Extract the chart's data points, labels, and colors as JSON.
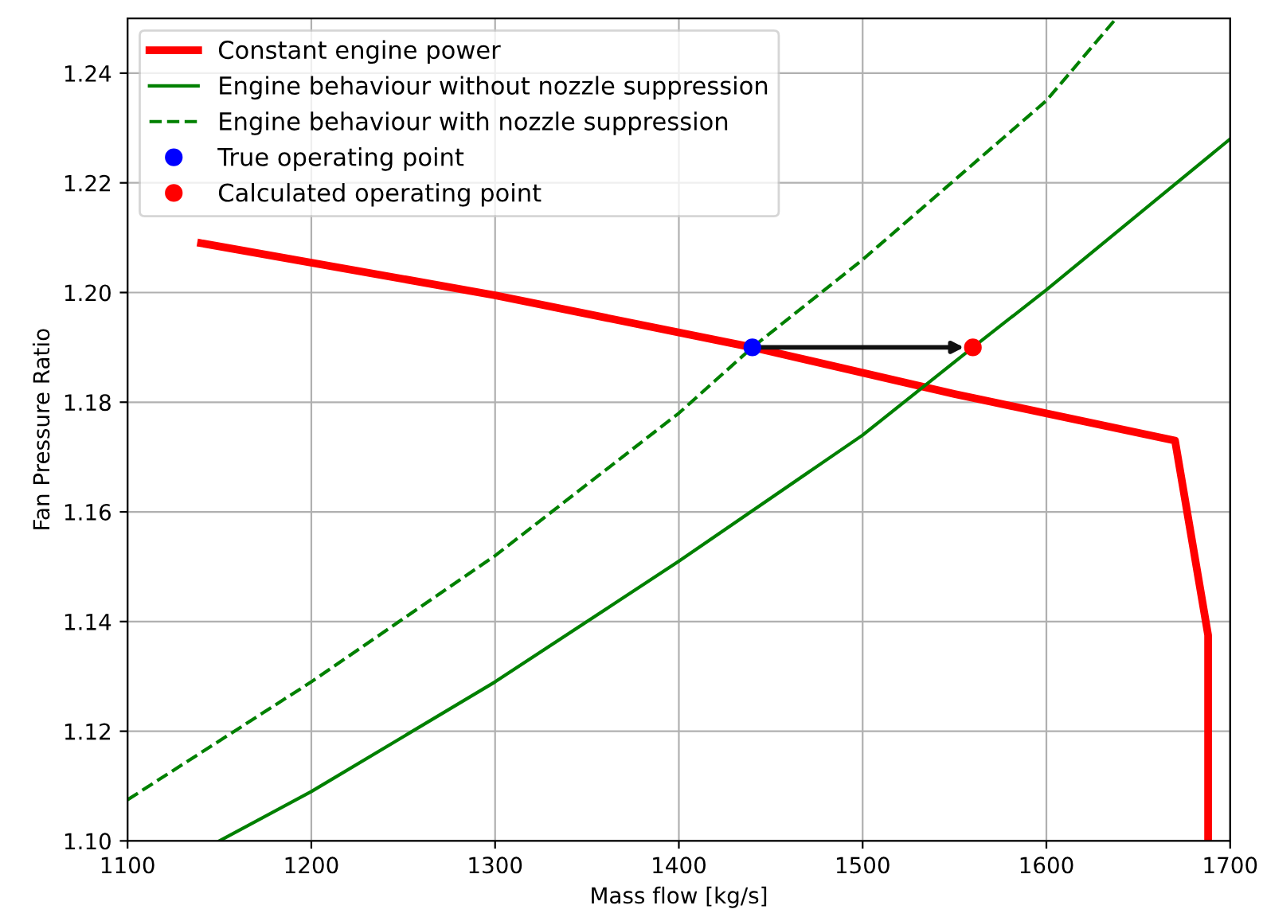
{
  "chart_data": {
    "type": "line",
    "xlabel": "Mass flow [kg/s]",
    "ylabel": "Fan Pressure Ratio",
    "xlim": [
      1100,
      1700
    ],
    "ylim": [
      1.1,
      1.25
    ],
    "xticks": [
      1100,
      1200,
      1300,
      1400,
      1500,
      1600,
      1700
    ],
    "yticks": [
      {
        "value": 1.1,
        "label": "1.10"
      },
      1.12,
      1.14,
      1.16,
      1.18,
      {
        "value": 1.2,
        "label": "1.20"
      },
      1.22,
      1.24
    ],
    "grid": true,
    "legend": "top left",
    "series": [
      {
        "name": "Constant engine power",
        "color": "#ff0000",
        "line_style": "solid",
        "x": [
          1140,
          1300,
          1440,
          1550,
          1670,
          1688,
          1688
        ],
        "values": [
          1.209,
          1.1995,
          1.19,
          1.1815,
          1.173,
          1.1375,
          1.1
        ]
      },
      {
        "name": "Engine behaviour without nozzle suppression",
        "color": "#008000",
        "line_style": "solid",
        "x": [
          1150,
          1200,
          1300,
          1400,
          1500,
          1560,
          1600,
          1700
        ],
        "values": [
          1.1,
          1.109,
          1.129,
          1.151,
          1.174,
          1.19,
          1.2005,
          1.228
        ]
      },
      {
        "name": "Engine behaviour with nozzle suppression",
        "color": "#008000",
        "line_style": "dashed",
        "x": [
          1100,
          1200,
          1300,
          1400,
          1440,
          1500,
          1600,
          1638
        ],
        "values": [
          1.1075,
          1.129,
          1.152,
          1.178,
          1.19,
          1.206,
          1.235,
          1.25
        ]
      },
      {
        "name": "True operating point",
        "color": "#0000ff",
        "type": "scatter",
        "marker": "circle",
        "x": [
          1440
        ],
        "values": [
          1.19
        ]
      },
      {
        "name": "Calculated operating point",
        "color": "#ff0000",
        "type": "scatter",
        "marker": "circle",
        "x": [
          1560
        ],
        "values": [
          1.19
        ]
      }
    ]
  }
}
